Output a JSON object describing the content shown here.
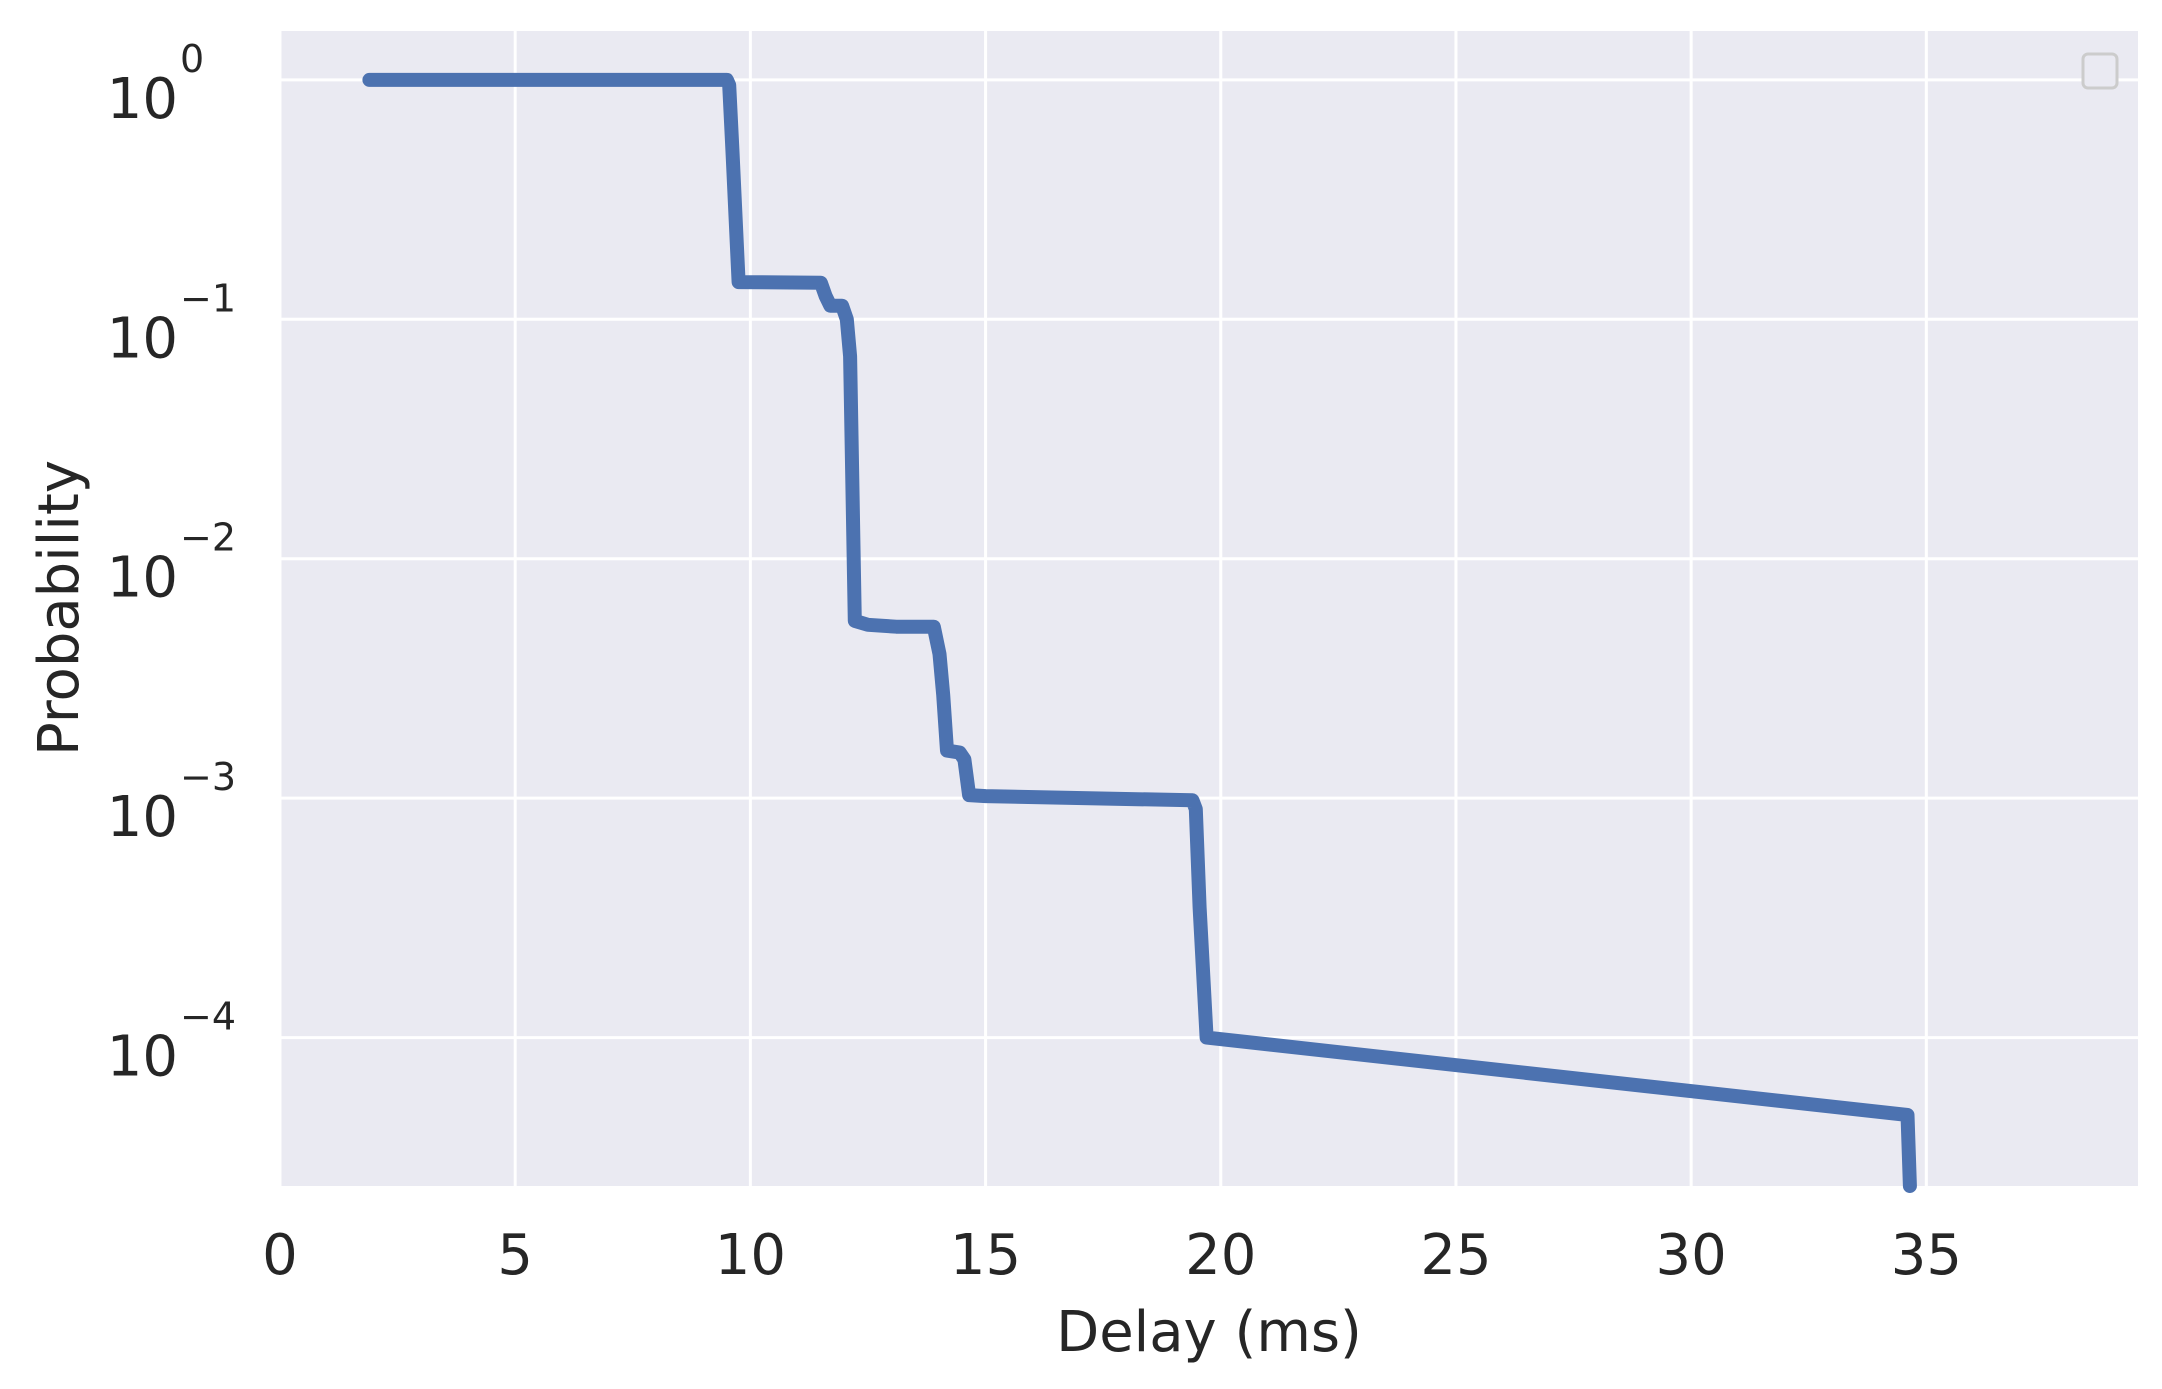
{
  "chart_data": {
    "type": "line",
    "title": "",
    "xlabel": "Delay (ms)",
    "ylabel": "Probability",
    "xscale": "linear",
    "yscale": "log",
    "xlim": [
      0,
      39.5
    ],
    "ylim": [
      2.4e-05,
      1.6
    ],
    "xticks": [
      0,
      5,
      10,
      15,
      20,
      25,
      30,
      35
    ],
    "xtick_labels": [
      "0",
      "5",
      "10",
      "15",
      "20",
      "25",
      "30",
      "35"
    ],
    "yticks": [
      1,
      0.1,
      0.01,
      0.001,
      0.0001
    ],
    "ytick_labels": [
      {
        "base": "10",
        "exp": "0"
      },
      {
        "base": "10",
        "exp": "−1"
      },
      {
        "base": "10",
        "exp": "−2"
      },
      {
        "base": "10",
        "exp": "−3"
      },
      {
        "base": "10",
        "exp": "−4"
      }
    ],
    "grid": true,
    "legend": {
      "placement": "top-right",
      "entries": []
    },
    "colors": {
      "background": "#eaeaf2",
      "grid": "#ffffff",
      "line": "#4c72b0",
      "text": "#262626"
    },
    "series": [
      {
        "values": [
          [
            1.9,
            1.0
          ],
          [
            9.5,
            1.0
          ],
          [
            9.55,
            0.95
          ],
          [
            9.62,
            0.5
          ],
          [
            9.75,
            0.143
          ],
          [
            11.5,
            0.142
          ],
          [
            11.6,
            0.125
          ],
          [
            11.7,
            0.114
          ],
          [
            11.95,
            0.114
          ],
          [
            12.05,
            0.1
          ],
          [
            12.12,
            0.07
          ],
          [
            12.22,
            0.0055
          ],
          [
            12.5,
            0.0053
          ],
          [
            13.1,
            0.0052
          ],
          [
            13.9,
            0.0052
          ],
          [
            14.02,
            0.004
          ],
          [
            14.1,
            0.0027
          ],
          [
            14.18,
            0.00158
          ],
          [
            14.45,
            0.00155
          ],
          [
            14.55,
            0.00145
          ],
          [
            14.65,
            0.00103
          ],
          [
            15.0,
            0.00102
          ],
          [
            19.4,
            0.00098
          ],
          [
            19.47,
            0.0009
          ],
          [
            19.55,
            0.00035
          ],
          [
            19.7,
            0.0001
          ],
          [
            34.6,
            4.75e-05
          ],
          [
            34.65,
            2.4e-05
          ]
        ]
      }
    ]
  }
}
